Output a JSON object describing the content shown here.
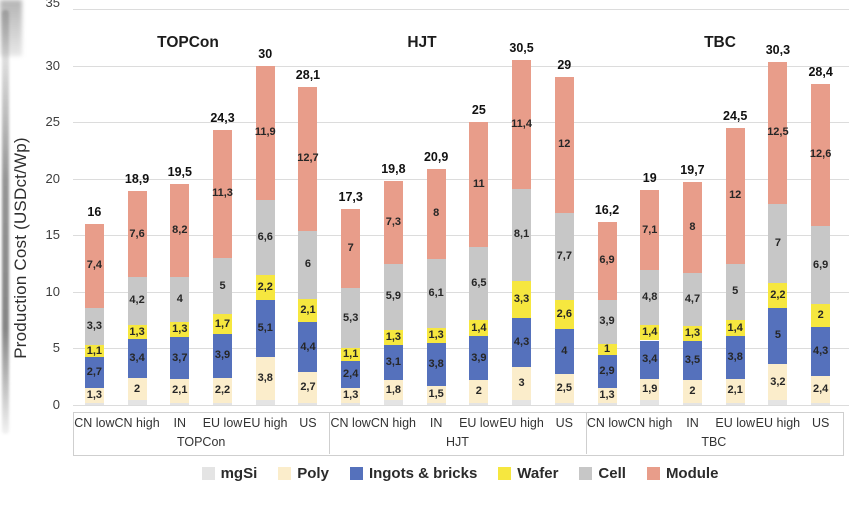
{
  "y_axis": {
    "title": "Production Cost (USDct/Wp)"
  },
  "legend": {
    "items": [
      {
        "label": "mgSi",
        "color": "#e4e4e4"
      },
      {
        "label": "Poly",
        "color": "#fbedcb"
      },
      {
        "label": "Ingots & bricks",
        "color": "#5571bc"
      },
      {
        "label": "Wafer",
        "color": "#f6e73f"
      },
      {
        "label": "Cell",
        "color": "#c7c7c7"
      },
      {
        "label": "Module",
        "color": "#e89d8a"
      }
    ]
  },
  "chart_data": {
    "type": "bar",
    "stacked": true,
    "title": "",
    "ylabel": "Production Cost (USDct/Wp)",
    "xlabel": "",
    "ylim": [
      0,
      35
    ],
    "yticks": [
      0,
      5,
      10,
      15,
      20,
      25,
      30,
      35
    ],
    "ytick_labels": [
      "0",
      "5",
      "10",
      "15",
      "20",
      "25",
      "30",
      "35"
    ],
    "grid": "horizontal",
    "legend_position": "bottom",
    "decimal_separator": ",",
    "series_order": [
      "mgSi",
      "Poly",
      "Ingots & bricks",
      "Wafer",
      "Cell",
      "Module"
    ],
    "colors": {
      "mgSi": "#e4e4e4",
      "Poly": "#fbedcb",
      "Ingots & bricks": "#5571bc",
      "Wafer": "#f6e73f",
      "Cell": "#c7c7c7",
      "Module": "#e89d8a"
    },
    "categories": [
      "CN low",
      "CN high",
      "IN",
      "EU low",
      "EU high",
      "US"
    ],
    "note": "mgSi segments are unlabeled in the chart; their values are estimated from bar totals",
    "groups": [
      {
        "name": "TOPCon",
        "bars": [
          {
            "category": "CN low",
            "total": 16,
            "total_label": "16",
            "values": [
              0.2,
              1.3,
              2.7,
              1.1,
              3.3,
              7.4
            ],
            "labels": [
              "",
              "1,3",
              "2,7",
              "1,1",
              "3,3",
              "7,4"
            ]
          },
          {
            "category": "CN high",
            "total": 18.9,
            "total_label": "18,9",
            "values": [
              0.4,
              2,
              3.4,
              1.3,
              4.2,
              7.6
            ],
            "labels": [
              "",
              "2",
              "3,4",
              "1,3",
              "4,2",
              "7,6"
            ]
          },
          {
            "category": "IN",
            "total": 19.5,
            "total_label": "19,5",
            "values": [
              0.2,
              2.1,
              3.7,
              1.3,
              4,
              8.2
            ],
            "labels": [
              "",
              "2,1",
              "3,7",
              "1,3",
              "4",
              "8,2"
            ]
          },
          {
            "category": "EU low",
            "total": 24.3,
            "total_label": "24,3",
            "values": [
              0.2,
              2.2,
              3.9,
              1.7,
              5,
              11.3
            ],
            "labels": [
              "",
              "2,2",
              "3,9",
              "1,7",
              "5",
              "11,3"
            ]
          },
          {
            "category": "EU high",
            "total": 30,
            "total_label": "30",
            "values": [
              0.4,
              3.8,
              5.1,
              2.2,
              6.6,
              11.9
            ],
            "labels": [
              "",
              "3,8",
              "5,1",
              "2,2",
              "6,6",
              "11,9"
            ]
          },
          {
            "category": "US",
            "total": 28.1,
            "total_label": "28,1",
            "values": [
              0.2,
              2.7,
              4.4,
              2.1,
              6,
              12.7
            ],
            "labels": [
              "",
              "2,7",
              "4,4",
              "2,1",
              "6",
              "12,7"
            ]
          }
        ]
      },
      {
        "name": "HJT",
        "bars": [
          {
            "category": "CN low",
            "total": 17.3,
            "total_label": "17,3",
            "values": [
              0.2,
              1.3,
              2.4,
              1.1,
              5.3,
              7
            ],
            "labels": [
              "",
              "1,3",
              "2,4",
              "1,1",
              "5,3",
              "7"
            ]
          },
          {
            "category": "CN high",
            "total": 19.8,
            "total_label": "19,8",
            "values": [
              0.4,
              1.8,
              3.1,
              1.3,
              5.9,
              7.3
            ],
            "labels": [
              "",
              "1,8",
              "3,1",
              "1,3",
              "5,9",
              "7,3"
            ]
          },
          {
            "category": "IN",
            "total": 20.9,
            "total_label": "20,9",
            "values": [
              0.2,
              1.5,
              3.8,
              1.3,
              6.1,
              8
            ],
            "labels": [
              "",
              "1,5",
              "3,8",
              "1,3",
              "6,1",
              "8"
            ]
          },
          {
            "category": "EU low",
            "total": 25,
            "total_label": "25",
            "values": [
              0.2,
              2,
              3.9,
              1.4,
              6.5,
              11
            ],
            "labels": [
              "",
              "2",
              "3,9",
              "1,4",
              "6,5",
              "11"
            ]
          },
          {
            "category": "EU high",
            "total": 30.5,
            "total_label": "30,5",
            "values": [
              0.4,
              3,
              4.3,
              3.3,
              8.1,
              11.4
            ],
            "labels": [
              "",
              "3",
              "4,3",
              "3,3",
              "8,1",
              "11,4"
            ]
          },
          {
            "category": "US",
            "total": 29,
            "total_label": "29",
            "values": [
              0.2,
              2.5,
              4,
              2.6,
              7.7,
              12
            ],
            "labels": [
              "",
              "2,5",
              "4",
              "2,6",
              "7,7",
              "12"
            ]
          }
        ]
      },
      {
        "name": "TBC",
        "bars": [
          {
            "category": "CN low",
            "total": 16.2,
            "total_label": "16,2",
            "values": [
              0.2,
              1.3,
              2.9,
              1,
              3.9,
              6.9
            ],
            "labels": [
              "",
              "1,3",
              "2,9",
              "1",
              "3,9",
              "6,9"
            ]
          },
          {
            "category": "CN high",
            "total": 19,
            "total_label": "19",
            "values": [
              0.4,
              1.9,
              3.4,
              1.4,
              4.8,
              7.1
            ],
            "labels": [
              "",
              "1,9",
              "3,4",
              "1,4",
              "4,8",
              "7,1"
            ]
          },
          {
            "category": "IN",
            "total": 19.7,
            "total_label": "19,7",
            "values": [
              0.2,
              2,
              3.5,
              1.3,
              4.7,
              8
            ],
            "labels": [
              "",
              "2",
              "3,5",
              "1,3",
              "4,7",
              "8"
            ]
          },
          {
            "category": "EU low",
            "total": 24.5,
            "total_label": "24,5",
            "values": [
              0.2,
              2.1,
              3.8,
              1.4,
              5,
              12
            ],
            "labels": [
              "",
              "2,1",
              "3,8",
              "1,4",
              "5",
              "12"
            ]
          },
          {
            "category": "EU high",
            "total": 30.3,
            "total_label": "30,3",
            "values": [
              0.4,
              3.2,
              5,
              2.2,
              7,
              12.5
            ],
            "labels": [
              "",
              "3,2",
              "5",
              "2,2",
              "7",
              "12,5"
            ]
          },
          {
            "category": "US",
            "total": 28.4,
            "total_label": "28,4",
            "values": [
              0.2,
              2.4,
              4.3,
              2,
              6.9,
              12.6
            ],
            "labels": [
              "",
              "2,4",
              "4,3",
              "2",
              "6,9",
              "12,6"
            ]
          }
        ]
      }
    ]
  }
}
